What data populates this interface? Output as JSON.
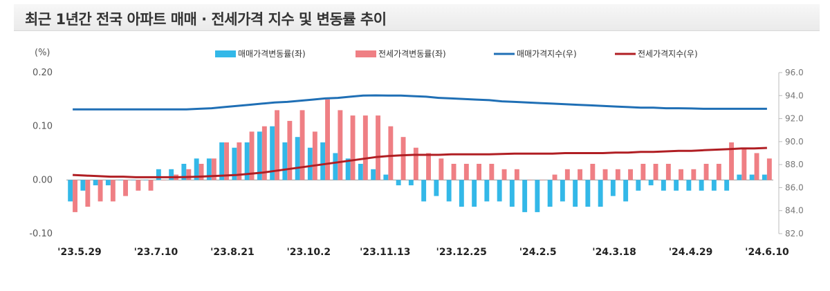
{
  "title": "최근 1년간 전국 아파트 매매 · 전세가격 지수 및 변동률 추이",
  "chart_data": {
    "type": "bar",
    "left_axis": {
      "unit_label": "(%)",
      "ylim": [
        -0.1,
        0.2
      ],
      "ticks": [
        "0.20",
        "0.10",
        "0.00",
        "-0.10"
      ],
      "tick_values": [
        0.2,
        0.1,
        0.0,
        -0.1
      ]
    },
    "right_axis": {
      "ylim": [
        82.0,
        96.0
      ],
      "ticks": [
        "96.0",
        "94.0",
        "92.0",
        "90.0",
        "88.0",
        "86.0",
        "84.0",
        "82.0"
      ],
      "tick_values": [
        96,
        94,
        92,
        90,
        88,
        86,
        84,
        82
      ]
    },
    "x_tick_labels": [
      "'23.5.29",
      "'23.7.10",
      "'23.8.21",
      "'23.10.2",
      "'23.11.13",
      "'23.12.25",
      "'24.2.5",
      "'24.3.18",
      "'24.4.29",
      "'24.6.10"
    ],
    "legend_position": "top",
    "series": [
      {
        "name": "매매가격변동률(좌)",
        "type": "bar",
        "axis": "left",
        "color": "#33b8e8",
        "values": [
          -0.04,
          -0.02,
          -0.01,
          -0.01,
          0.0,
          0.0,
          0.0,
          0.02,
          0.02,
          0.03,
          0.04,
          0.04,
          0.07,
          0.06,
          0.07,
          0.09,
          0.1,
          0.07,
          0.08,
          0.06,
          0.07,
          0.05,
          0.04,
          0.03,
          0.02,
          0.01,
          -0.01,
          -0.01,
          -0.04,
          -0.03,
          -0.04,
          -0.05,
          -0.05,
          -0.04,
          -0.04,
          -0.05,
          -0.06,
          -0.06,
          -0.05,
          -0.04,
          -0.05,
          -0.05,
          -0.05,
          -0.03,
          -0.04,
          -0.02,
          -0.01,
          -0.02,
          -0.02,
          -0.02,
          -0.02,
          -0.02,
          -0.02,
          0.01,
          0.01,
          0.01
        ]
      },
      {
        "name": "전세가격변동률(좌)",
        "type": "bar",
        "axis": "left",
        "color": "#ef7f84",
        "values": [
          -0.06,
          -0.05,
          -0.04,
          -0.04,
          -0.03,
          -0.02,
          -0.02,
          0.0,
          0.01,
          0.02,
          0.03,
          0.04,
          0.07,
          0.07,
          0.09,
          0.1,
          0.13,
          0.11,
          0.13,
          0.09,
          0.15,
          0.13,
          0.12,
          0.12,
          0.12,
          0.1,
          0.08,
          0.06,
          0.05,
          0.04,
          0.03,
          0.03,
          0.03,
          0.03,
          0.02,
          0.02,
          0.0,
          0.0,
          0.01,
          0.02,
          0.02,
          0.03,
          0.02,
          0.02,
          0.02,
          0.03,
          0.03,
          0.03,
          0.02,
          0.02,
          0.03,
          0.03,
          0.07,
          0.06,
          0.05,
          0.04
        ]
      },
      {
        "name": "매매가격지수(우)",
        "type": "line",
        "axis": "right",
        "color": "#1f6fb5",
        "values": [
          92.8,
          92.8,
          92.8,
          92.8,
          92.8,
          92.8,
          92.8,
          92.8,
          92.8,
          92.8,
          92.85,
          92.9,
          93.0,
          93.1,
          93.2,
          93.3,
          93.4,
          93.45,
          93.55,
          93.65,
          93.75,
          93.8,
          93.9,
          94.0,
          94.02,
          94.0,
          94.0,
          93.95,
          93.9,
          93.8,
          93.75,
          93.7,
          93.65,
          93.6,
          93.5,
          93.45,
          93.4,
          93.35,
          93.3,
          93.25,
          93.2,
          93.15,
          93.1,
          93.05,
          93.0,
          92.95,
          92.95,
          92.9,
          92.9,
          92.88,
          92.85,
          92.85,
          92.85,
          92.85,
          92.85,
          92.85
        ]
      },
      {
        "name": "전세가격지수(우)",
        "type": "line",
        "axis": "right",
        "color": "#b01e23",
        "values": [
          87.1,
          87.05,
          87.0,
          86.95,
          86.95,
          86.9,
          86.9,
          86.9,
          86.9,
          86.92,
          86.95,
          87.0,
          87.05,
          87.1,
          87.2,
          87.3,
          87.45,
          87.6,
          87.75,
          87.9,
          88.05,
          88.2,
          88.35,
          88.5,
          88.65,
          88.75,
          88.8,
          88.85,
          88.85,
          88.85,
          88.9,
          88.9,
          88.9,
          88.9,
          88.92,
          88.95,
          88.95,
          88.95,
          88.95,
          89.0,
          89.0,
          89.0,
          89.0,
          89.05,
          89.05,
          89.1,
          89.1,
          89.15,
          89.2,
          89.2,
          89.25,
          89.3,
          89.35,
          89.4,
          89.4,
          89.45
        ]
      }
    ]
  }
}
